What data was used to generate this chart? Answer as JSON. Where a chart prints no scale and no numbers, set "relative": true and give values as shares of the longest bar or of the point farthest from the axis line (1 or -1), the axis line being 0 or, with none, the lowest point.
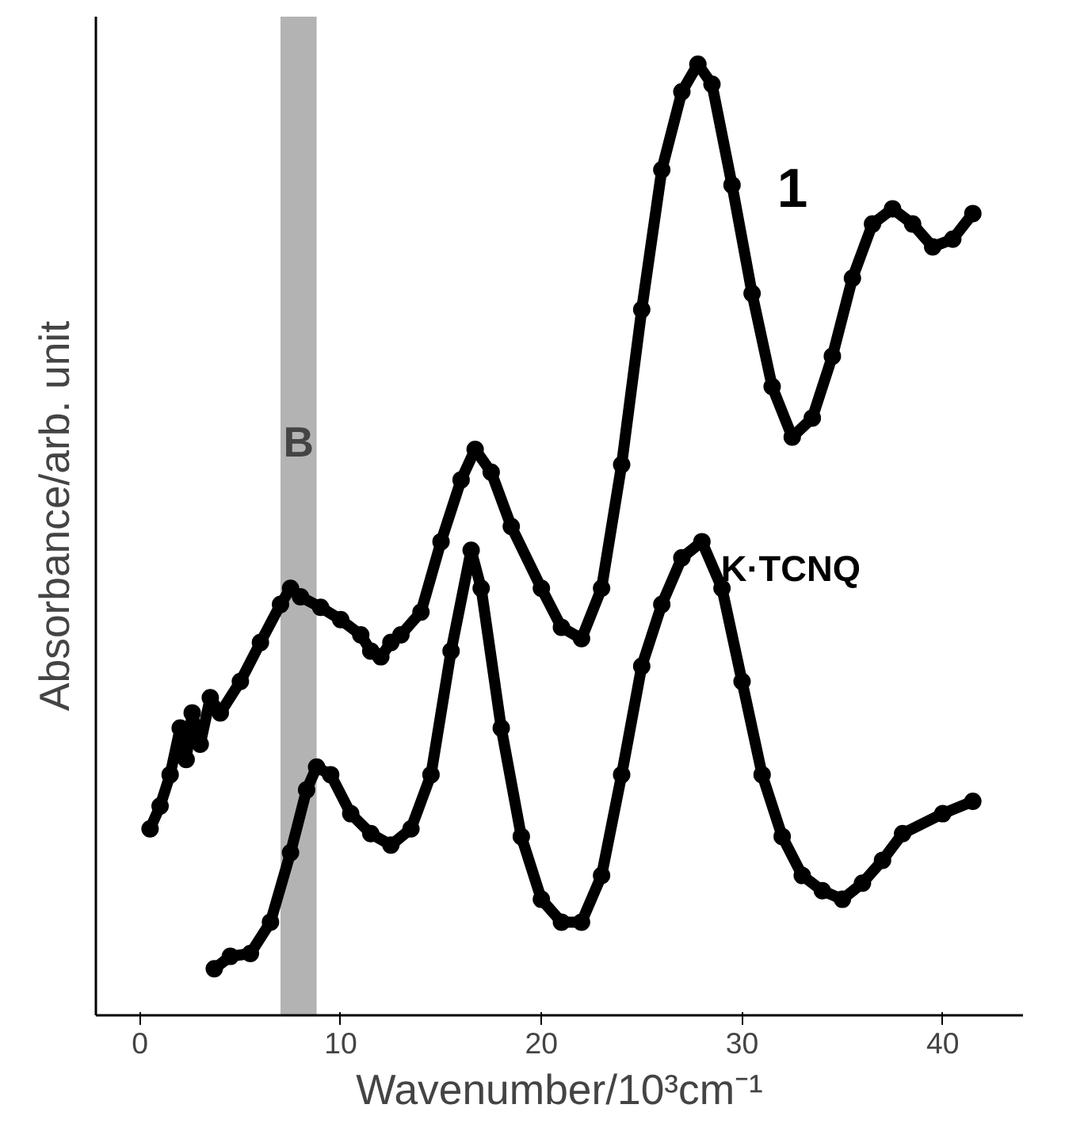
{
  "chart_data": {
    "type": "line",
    "relative": true,
    "xlabel": "Wavenumber/10³cm⁻¹",
    "ylabel": "Absorbance/arb. unit",
    "xlim": [
      -2.2,
      44
    ],
    "xticks": [
      0,
      10,
      20,
      30,
      40
    ],
    "marker": "circle",
    "grid": false,
    "series": [
      {
        "name": "1",
        "color": "#000000",
        "x": [
          0.5,
          1.0,
          1.5,
          2.0,
          2.3,
          2.6,
          3.0,
          3.5,
          4.0,
          5.0,
          6.0,
          7.0,
          7.5,
          8.0,
          9.0,
          10.0,
          11.0,
          11.5,
          12.0,
          12.5,
          13.0,
          14.0,
          15.0,
          16.0,
          16.7,
          17.5,
          18.5,
          20.0,
          21.0,
          22.0,
          23.0,
          24.0,
          25.0,
          26.0,
          27.0,
          27.8,
          28.5,
          29.5,
          30.5,
          31.5,
          32.5,
          33.5,
          34.5,
          35.5,
          36.5,
          37.5,
          38.5,
          39.5,
          40.5,
          41.5
        ],
        "values": [
          0.196,
          0.22,
          0.253,
          0.302,
          0.269,
          0.318,
          0.285,
          0.334,
          0.318,
          0.351,
          0.392,
          0.432,
          0.449,
          0.44,
          0.429,
          0.416,
          0.4,
          0.383,
          0.377,
          0.392,
          0.4,
          0.424,
          0.498,
          0.563,
          0.595,
          0.571,
          0.514,
          0.449,
          0.408,
          0.396,
          0.449,
          0.579,
          0.742,
          0.889,
          0.971,
          1,
          0.979,
          0.873,
          0.759,
          0.661,
          0.608,
          0.628,
          0.693,
          0.775,
          0.832,
          0.848,
          0.832,
          0.808,
          0.816,
          0.843
        ]
      },
      {
        "name": "K·TCNQ",
        "color": "#000000",
        "x": [
          3.7,
          4.5,
          5.5,
          6.5,
          7.5,
          8.3,
          8.8,
          9.5,
          10.5,
          11.5,
          12.5,
          13.5,
          14.5,
          15.5,
          16.5,
          17.0,
          18.0,
          19.0,
          20.0,
          21.0,
          22.0,
          23.0,
          24.0,
          25.0,
          26.0,
          27.0,
          28.0,
          29.0,
          30.0,
          31.0,
          32.0,
          33.0,
          34.0,
          35.0,
          36.0,
          37.0,
          38.0,
          40.0,
          41.5
        ],
        "values": [
          0.049,
          0.062,
          0.065,
          0.098,
          0.171,
          0.237,
          0.261,
          0.253,
          0.212,
          0.191,
          0.179,
          0.196,
          0.253,
          0.383,
          0.489,
          0.449,
          0.302,
          0.188,
          0.122,
          0.098,
          0.098,
          0.147,
          0.253,
          0.367,
          0.432,
          0.481,
          0.498,
          0.449,
          0.351,
          0.253,
          0.188,
          0.147,
          0.131,
          0.122,
          0.139,
          0.163,
          0.191,
          0.212,
          0.225
        ]
      }
    ],
    "bands": [
      {
        "axis": "x",
        "from": 7.0,
        "to": 8.8,
        "label": "B",
        "color": "#b3b3b3"
      }
    ]
  }
}
